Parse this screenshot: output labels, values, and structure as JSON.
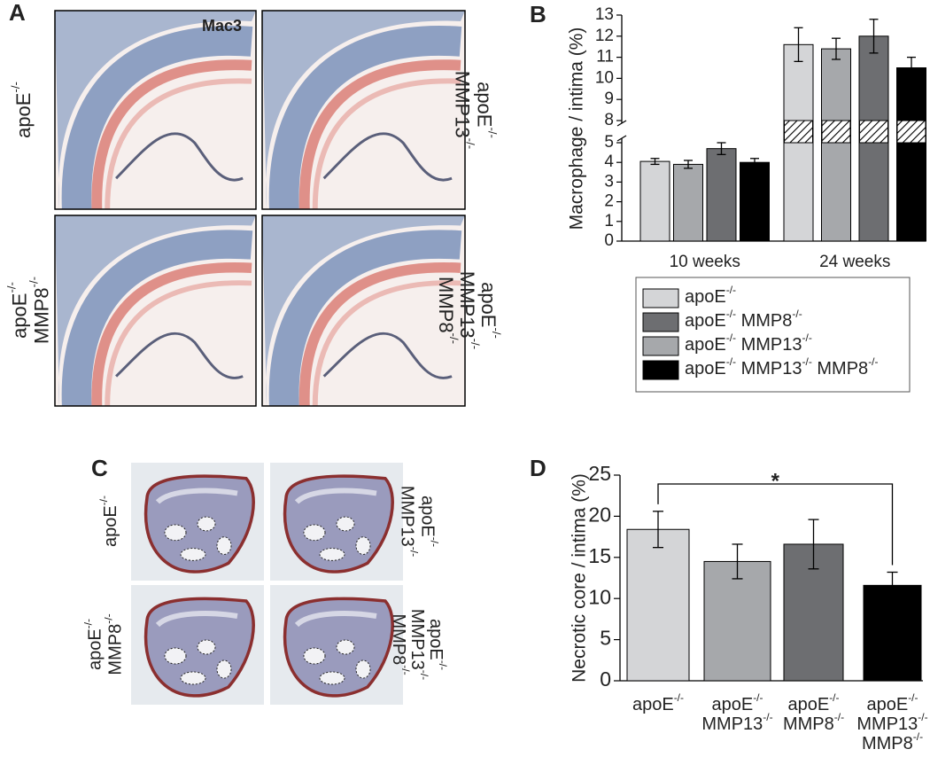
{
  "panels": {
    "A": {
      "letter": "A",
      "stain": "Mac3",
      "labels": [
        [
          [
            {
              "text": "apoE",
              "sup": "-/-"
            }
          ]
        ],
        [
          [
            {
              "text": "apoE",
              "sup": "-/-"
            }
          ],
          [
            {
              "text": "MMP13",
              "sup": "-/-"
            }
          ]
        ],
        [
          [
            {
              "text": "apoE",
              "sup": "-/-"
            }
          ],
          [
            {
              "text": "MMP8",
              "sup": "-/-"
            }
          ]
        ],
        [
          [
            {
              "text": "apoE",
              "sup": "-/-"
            }
          ],
          [
            {
              "text": "MMP13",
              "sup": "-/-"
            }
          ],
          [
            {
              "text": "MMP8",
              "sup": "-/-"
            }
          ]
        ]
      ]
    },
    "B": {
      "letter": "B"
    },
    "C": {
      "letter": "C",
      "labels": [
        [
          [
            {
              "text": "apoE",
              "sup": "-/-"
            }
          ]
        ],
        [
          [
            {
              "text": "apoE",
              "sup": "-/-"
            }
          ],
          [
            {
              "text": "MMP13",
              "sup": "-/-"
            }
          ]
        ],
        [
          [
            {
              "text": "apoE",
              "sup": "-/-"
            }
          ],
          [
            {
              "text": "MMP8",
              "sup": "-/-"
            }
          ]
        ],
        [
          [
            {
              "text": "apoE",
              "sup": "-/-"
            }
          ],
          [
            {
              "text": "MMP13",
              "sup": "-/-"
            }
          ],
          [
            {
              "text": "MMP8",
              "sup": "-/-"
            }
          ]
        ]
      ]
    },
    "D": {
      "letter": "D"
    }
  },
  "chart_data": [
    {
      "type": "bar",
      "ylabel": "Macrophage / intima (%)",
      "categories": [
        "10 weeks",
        "24 weeks"
      ],
      "series": [
        {
          "name": [
            [
              {
                "text": "apoE",
                "sup": "-/-"
              }
            ]
          ],
          "color": "#d4d5d7",
          "values": [
            4.05,
            11.6
          ],
          "errors": [
            0.15,
            0.8
          ]
        },
        {
          "name": [
            [
              {
                "text": "apoE",
                "sup": "-/-"
              },
              {
                "text": " MMP13",
                "sup": "-/-"
              }
            ]
          ],
          "color": "#a6a8ab",
          "values": [
            3.9,
            11.4
          ],
          "errors": [
            0.2,
            0.5
          ]
        },
        {
          "name": [
            [
              {
                "text": "apoE",
                "sup": "-/-"
              },
              {
                "text": " MMP8",
                "sup": "-/-"
              }
            ]
          ],
          "color": "#6d6e71",
          "values": [
            4.7,
            12.0
          ],
          "errors": [
            0.3,
            0.8
          ]
        },
        {
          "name": [
            [
              {
                "text": "apoE",
                "sup": "-/-"
              },
              {
                "text": " MMP13",
                "sup": "-/-"
              },
              {
                "text": " MMP8",
                "sup": "-/-"
              }
            ]
          ],
          "color": "#000000",
          "values": [
            4.0,
            10.5
          ],
          "errors": [
            0.2,
            0.5
          ]
        }
      ],
      "legend_order": [
        0,
        2,
        1,
        3
      ],
      "legend": "bottom",
      "ylim": [
        0,
        13
      ],
      "ybreak": [
        5,
        8
      ],
      "yticks": [
        0,
        1,
        2,
        3,
        4,
        5,
        8,
        9,
        10,
        11,
        12,
        13
      ]
    },
    {
      "type": "bar",
      "ylabel": "Necrotic core / intima (%)",
      "categories": [
        [
          [
            {
              "text": "apoE",
              "sup": "-/-"
            }
          ]
        ],
        [
          [
            {
              "text": "apoE",
              "sup": "-/-"
            }
          ],
          [
            {
              "text": "MMP13",
              "sup": "-/-"
            }
          ]
        ],
        [
          [
            {
              "text": "apoE",
              "sup": "-/-"
            }
          ],
          [
            {
              "text": "MMP8",
              "sup": "-/-"
            }
          ]
        ],
        [
          [
            {
              "text": "apoE",
              "sup": "-/-"
            }
          ],
          [
            {
              "text": "MMP13",
              "sup": "-/-"
            }
          ],
          [
            {
              "text": "MMP8",
              "sup": "-/-"
            }
          ]
        ]
      ],
      "values": [
        18.4,
        14.5,
        16.6,
        11.6
      ],
      "errors": [
        2.2,
        2.1,
        3.0,
        1.6
      ],
      "colors": [
        "#d4d5d7",
        "#a6a8ab",
        "#6d6e71",
        "#000000"
      ],
      "ylim": [
        0,
        25
      ],
      "yticks": [
        0,
        5,
        10,
        15,
        20,
        25
      ],
      "annotation": {
        "text": "*",
        "from": 0,
        "to": 3
      }
    }
  ]
}
